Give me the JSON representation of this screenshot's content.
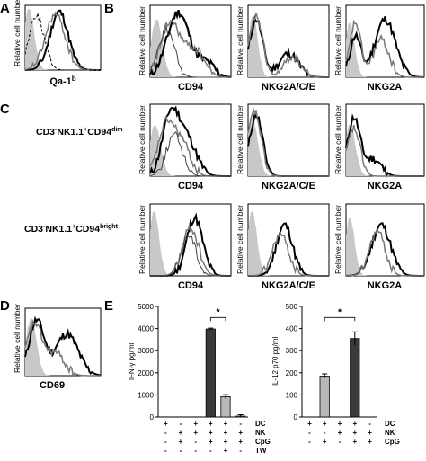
{
  "panels": {
    "a": "A",
    "b": "B",
    "c": "C",
    "d": "D",
    "e": "E"
  },
  "ylabel_flow": "Relative cell number",
  "xlabels": {
    "qa1b": "Qa-1",
    "qa1b_sup": "b",
    "cd94": "CD94",
    "nkg2ace": "NKG2A/C/E",
    "nkg2a": "NKG2A",
    "cd69": "CD69"
  },
  "row_labels": {
    "dim_prefix": "CD3",
    "dim_minus": "-",
    "dim_mid": "NK1.1",
    "dim_plus": "+",
    "dim_marker": "CD94",
    "dim_suffix": "dim",
    "bright_prefix": "CD3",
    "bright_minus": "-",
    "bright_mid": "NK1.1",
    "bright_plus": "+",
    "bright_marker": "CD94",
    "bright_suffix": "bright"
  },
  "significance": "*",
  "condition_labels_ifn": [
    "DC",
    "NK",
    "CpG",
    "TW"
  ],
  "condition_labels_il12": [
    "DC",
    "NK",
    "CpG"
  ],
  "chart_data": [
    {
      "type": "bar",
      "ylabel": "IFN-γ pg/ml",
      "ylim": [
        0,
        5000
      ],
      "yticks": [
        0,
        1000,
        2000,
        3000,
        4000,
        5000
      ],
      "rows": [
        "DC",
        "NK",
        "CpG",
        "TW"
      ],
      "conditions": [
        [
          "+",
          "-",
          "-",
          "-"
        ],
        [
          "-",
          "+",
          "+",
          "-"
        ],
        [
          "+",
          "+",
          "-",
          "-"
        ],
        [
          "+",
          "+",
          "+",
          "-"
        ],
        [
          "+",
          "+",
          "+",
          "+"
        ],
        [
          "-",
          "+",
          "+",
          "-"
        ]
      ],
      "values": [
        5,
        5,
        5,
        3980,
        920,
        40
      ],
      "errors": [
        0,
        0,
        0,
        40,
        90,
        60
      ],
      "colors": [
        "#ffffff",
        "#ffffff",
        "#ffffff",
        "#3a3a3a",
        "#b8b8b8",
        "#ffffff"
      ]
    },
    {
      "type": "bar",
      "ylabel": "IL-12 p70 pg/ml",
      "ylim": [
        0,
        500
      ],
      "yticks": [
        0,
        100,
        200,
        300,
        400,
        500
      ],
      "rows": [
        "DC",
        "NK",
        "CpG"
      ],
      "conditions": [
        [
          "+",
          "-",
          "-"
        ],
        [
          "+",
          "-",
          "+"
        ],
        [
          "+",
          "+",
          "-"
        ],
        [
          "+",
          "+",
          "+"
        ],
        [
          "-",
          "+",
          "+"
        ]
      ],
      "values": [
        0,
        185,
        0,
        355,
        0
      ],
      "errors": [
        0,
        10,
        0,
        30,
        0
      ],
      "colors": [
        "#ffffff",
        "#b8b8b8",
        "#ffffff",
        "#3a3a3a",
        "#ffffff"
      ]
    }
  ]
}
